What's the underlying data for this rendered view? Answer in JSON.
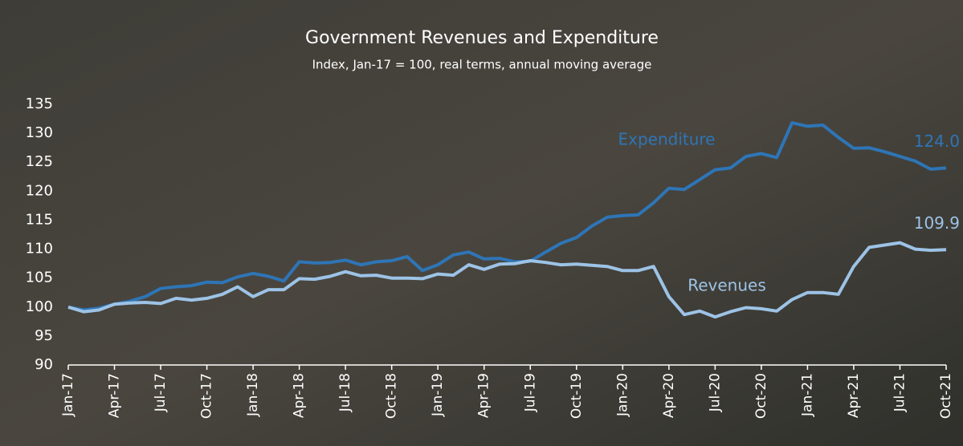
{
  "chart_data": {
    "type": "line",
    "title": "Government Revenues and Expenditure",
    "subtitle": "Index, Jan-17 = 100, real terms, annual moving average",
    "categories": [
      "Jan-17",
      null,
      null,
      "Apr-17",
      null,
      null,
      "Jul-17",
      null,
      null,
      "Oct-17",
      null,
      null,
      "Jan-18",
      null,
      null,
      "Apr-18",
      null,
      null,
      "Jul-18",
      null,
      null,
      "Oct-18",
      null,
      null,
      "Jan-19",
      null,
      null,
      "Apr-19",
      null,
      null,
      "Jul-19",
      null,
      null,
      "Oct-19",
      null,
      null,
      "Jan-20",
      null,
      null,
      "Apr-20",
      null,
      null,
      "Jul-20",
      null,
      null,
      "Oct-20",
      null,
      null,
      "Jan-21",
      null,
      null,
      "Apr-21",
      null,
      null,
      "Jul-21",
      null,
      null,
      "Oct-21"
    ],
    "series": [
      {
        "name": "Expenditure",
        "color": "#2e75b6",
        "values": [
          100,
          99.5,
          99.8,
          100.5,
          101,
          101.8,
          103.2,
          103.5,
          103.7,
          104.3,
          104.2,
          105.2,
          105.8,
          105.3,
          104.5,
          107.8,
          107.6,
          107.7,
          108.1,
          107.3,
          107.8,
          108,
          108.7,
          106.3,
          107.3,
          109,
          109.5,
          108.3,
          108.4,
          107.8,
          107.9,
          109.5,
          111,
          112,
          114,
          115.5,
          115.8,
          115.9,
          118,
          120.5,
          120.3,
          122,
          123.7,
          124,
          126,
          126.5,
          125.8,
          131.8,
          131.2,
          131.4,
          129.3,
          127.4,
          127.5,
          126.8,
          126,
          125.2,
          123.8,
          124
        ],
        "value_labels": [
          null,
          null,
          null,
          null,
          null,
          null,
          null,
          null,
          null,
          null,
          null,
          null,
          null,
          null,
          null,
          null,
          null,
          null,
          null,
          null,
          null,
          null,
          null,
          null,
          null,
          null,
          null,
          null,
          null,
          null,
          null,
          null,
          null,
          null,
          null,
          null,
          null,
          null,
          null,
          null,
          null,
          null,
          null,
          null,
          null,
          null,
          null,
          null,
          null,
          null,
          null,
          null,
          null,
          null,
          null,
          null,
          null,
          "124.0"
        ]
      },
      {
        "name": "Revenues",
        "color": "#9dc3e6",
        "values": [
          100,
          99.2,
          99.5,
          100.5,
          100.7,
          100.8,
          100.6,
          101.5,
          101.2,
          101.5,
          102.2,
          103.5,
          101.8,
          103,
          103,
          104.9,
          104.8,
          105.3,
          106.1,
          105.4,
          105.5,
          105,
          105,
          104.9,
          105.7,
          105.5,
          107.3,
          106.5,
          107.4,
          107.5,
          108,
          107.7,
          107.3,
          107.4,
          107.2,
          107,
          106.3,
          106.3,
          107,
          101.8,
          98.7,
          99.3,
          98.3,
          99.2,
          99.9,
          99.7,
          99.3,
          101.3,
          102.5,
          102.5,
          102.2,
          107,
          110.3,
          110.7,
          111.1,
          110,
          109.8,
          109.9
        ],
        "value_labels": [
          null,
          null,
          null,
          null,
          null,
          null,
          null,
          null,
          null,
          null,
          null,
          null,
          null,
          null,
          null,
          null,
          null,
          null,
          null,
          null,
          null,
          null,
          null,
          null,
          null,
          null,
          null,
          null,
          null,
          null,
          null,
          null,
          null,
          null,
          null,
          null,
          null,
          null,
          null,
          null,
          null,
          null,
          null,
          null,
          null,
          null,
          null,
          null,
          null,
          null,
          null,
          null,
          null,
          null,
          null,
          null,
          null,
          "109.9"
        ]
      }
    ],
    "ylim": [
      90,
      135
    ],
    "yticks": [
      90,
      95,
      100,
      105,
      110,
      115,
      120,
      125,
      130,
      135
    ],
    "grid": false
  }
}
